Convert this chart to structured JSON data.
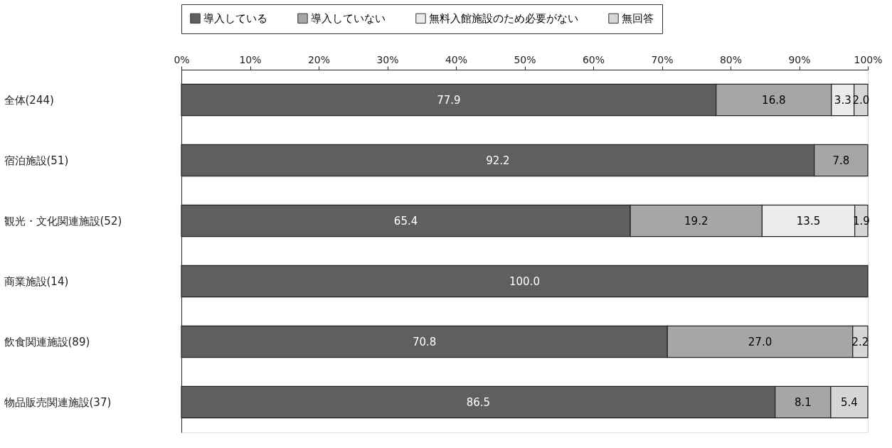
{
  "chart_data": {
    "type": "bar",
    "orientation": "horizontal",
    "stacked": true,
    "data_labels": true,
    "legend": "top",
    "grid": false,
    "categories": [
      "全体(244)",
      "宿泊施設(51)",
      "観光・文化関連施設(52)",
      "商業施設(14)",
      "飲食関連施設(89)",
      "物品販売関連施設(37)"
    ],
    "series": [
      {
        "name": "導入している",
        "color": "#5f5f5f",
        "values": [
          77.9,
          92.2,
          65.4,
          100.0,
          70.8,
          86.5
        ],
        "value_labels": [
          "77.9",
          "92.2",
          "65.4",
          "100.0",
          "70.8",
          "86.5"
        ]
      },
      {
        "name": "導入していない",
        "color": "#a6a6a6",
        "values": [
          16.8,
          7.8,
          19.2,
          null,
          27.0,
          8.1
        ],
        "value_labels": [
          "16.8",
          "7.8",
          "19.2",
          null,
          "27.0",
          "8.1"
        ]
      },
      {
        "name": "無料入館施設のため必要がない",
        "color": "#ebebeb",
        "values": [
          3.3,
          null,
          13.5,
          null,
          null,
          null
        ],
        "value_labels": [
          "3.3",
          null,
          "13.5",
          null,
          null,
          null
        ]
      },
      {
        "name": "無回答",
        "color": "#d6d6d6",
        "values": [
          2.0,
          null,
          1.9,
          null,
          2.2,
          5.4
        ],
        "value_labels": [
          "2.0",
          null,
          "1.9",
          null,
          "2.2",
          "5.4"
        ]
      }
    ],
    "xlim": [
      0,
      100
    ],
    "xticks": [
      {
        "value": 0,
        "label": "0%"
      },
      {
        "value": 10,
        "label": "10%"
      },
      {
        "value": 20,
        "label": "20%"
      },
      {
        "value": 30,
        "label": "30%"
      },
      {
        "value": 40,
        "label": "40%"
      },
      {
        "value": 50,
        "label": "50%"
      },
      {
        "value": 60,
        "label": "60%"
      },
      {
        "value": 70,
        "label": "70%"
      },
      {
        "value": 80,
        "label": "80%"
      },
      {
        "value": 90,
        "label": "90%"
      },
      {
        "value": 100,
        "label": "100%"
      }
    ]
  }
}
